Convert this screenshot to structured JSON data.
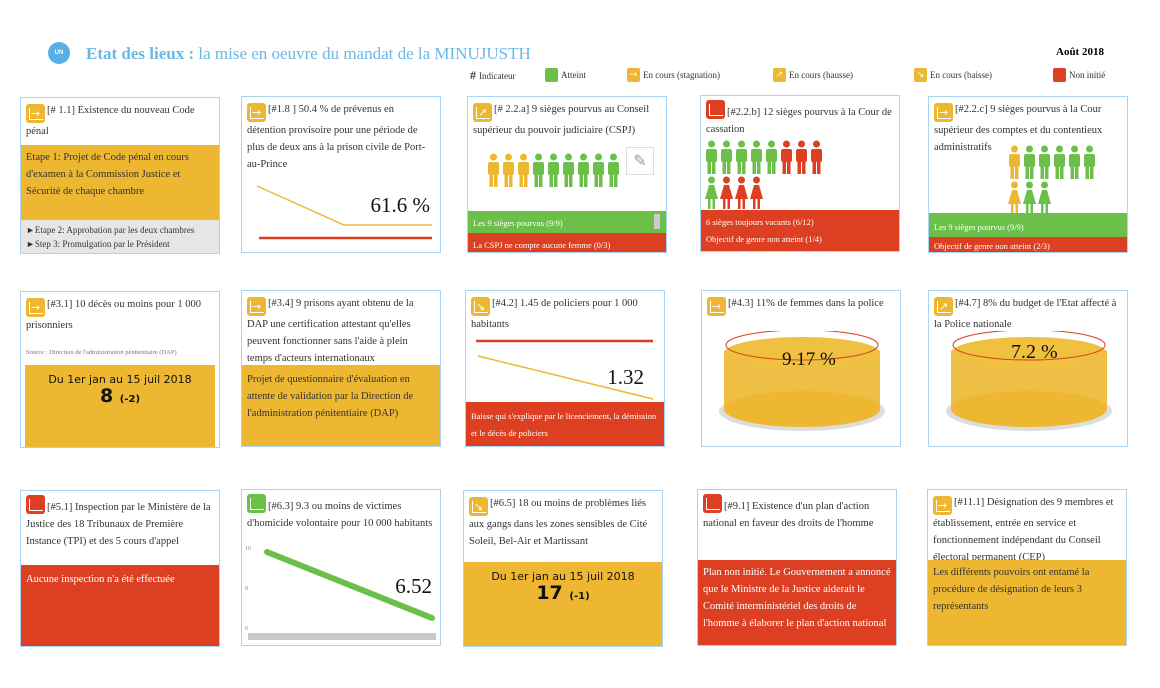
{
  "header": {
    "logo": "UN",
    "title_bold": "Etat des lieux :",
    "title_rest": " la mise en oeuvre du mandat de la MINUJUSTH",
    "date": "Août 2018"
  },
  "legend": [
    {
      "symbol": "#",
      "label": "Indicateur"
    },
    {
      "label": "Atteint",
      "color": "#6CC04A",
      "icon": "none"
    },
    {
      "label": "En cours (stagnation)",
      "color": "#EDB731",
      "icon": "arrow-right-icon"
    },
    {
      "label": "En cours (hausse)",
      "color": "#EDB731",
      "icon": "arrow-up-right-icon"
    },
    {
      "label": "En cours (baisse)",
      "color": "#EDB731",
      "icon": "arrow-down-right-icon"
    },
    {
      "label": "Non initié",
      "color": "#DC3F22",
      "icon": "none"
    }
  ],
  "colors": {
    "yellow": "#EDB731",
    "red": "#DC3F22",
    "green": "#6CC04A",
    "border": "#a9d4f5",
    "title": "#6ab8e8"
  },
  "cards": {
    "c11": {
      "status": "stagnation",
      "title": "[# 1.1] Existence du nouveau Code pénal",
      "step1": "Etape 1: Projet de Code pénal en cours d'examen à la Commission Justice et Sécurité de chaque chambre",
      "step2": "►Etape 2: Approbation par les deux chambres",
      "step3": "►Step 3: Promulgation par le Président"
    },
    "c18": {
      "status": "stagnation",
      "title": "[#1.8 ] 50.4 % de prévenus en détention provisoire pour une période de plus de deux ans à la prison civile de Port-au-Prince",
      "value": "61.6 %"
    },
    "c22a": {
      "status": "hausse",
      "title": "[# 2.2.a] 9 sièges pourvus au Conseil supérieur du pouvoir judiciaire (CSPJ)",
      "men": [
        "y",
        "y",
        "y",
        "g",
        "g",
        "g",
        "g",
        "g",
        "g"
      ],
      "line1": "Les 9 sièges pourvus (9/9)",
      "line2": "La CSPJ ne compte aucune femme (0/3)"
    },
    "c22b": {
      "status": "non-initie",
      "title": "[#2.2.b] 12 sièges pourvus à la Cour de cassation",
      "men": [
        "g",
        "g",
        "g",
        "g",
        "g",
        "r",
        "r",
        "r"
      ],
      "women": [
        "g",
        "r",
        "r",
        "r"
      ],
      "line1": "6 sièges toujours vacants (6/12)",
      "line2": "Objectif de genre non atteint (1/4)"
    },
    "c22c": {
      "status": "stagnation",
      "title": "[#2.2.c] 9 sièges pourvus à la Cour supérieur des comptes et du contentieux administratifs",
      "men": [
        "y",
        "g",
        "g",
        "g",
        "g",
        "g"
      ],
      "women": [
        "y",
        "g",
        "g"
      ],
      "line1": "Les 9 sièges pourvus  (9/9)",
      "line2": "Objectif de genre non atteint (2/3)"
    },
    "c31": {
      "status": "stagnation",
      "title": "[#3.1] 10 décès ou moins pour 1 000 prisonniers",
      "source": "Source : Direction de l'administration pénitentiaire (DAP)",
      "period": "Du 1er jan au 15 juil 2018",
      "value": "8",
      "delta": "(-2)"
    },
    "c34": {
      "status": "stagnation",
      "title": "[#3.4] 9 prisons ayant obtenu de la DAP une certification attestant qu'elles peuvent fonctionner sans l'aide à plein temps d'acteurs internationaux",
      "note": "Projet de questionnaire d'évaluation en attente de validation par la Direction de l'administration pénitentiaire (DAP)"
    },
    "c42": {
      "status": "baisse",
      "title": "[#4.2] 1.45 de policiers pour 1 000 habitants",
      "value": "1.32",
      "note": "Baisse qui s'explique par le licenciement, la démission et le décès de policiers"
    },
    "c43": {
      "status": "stagnation",
      "title": "[#4.3] 11% de femmes dans la police",
      "value": "9.17  %",
      "fill": 0.83
    },
    "c47": {
      "status": "hausse",
      "title": "[#4.7] 8% du budget de l'Etat affecté à la Police nationale",
      "value": "7.2 %",
      "fill": 0.9
    },
    "c51": {
      "status": "non-initie",
      "title": "[#5.1] Inspection par le Ministère de la Justice des 18 Tribunaux de Première Instance (TPI) et des 5 cours d'appel",
      "note": "Aucune inspection n'a été effectuée"
    },
    "c63": {
      "status": "atteint",
      "title": "[#6.3] 9.3 ou moins de victimes d'homicide volontaire pour 10 000 habitants",
      "value": "6.52",
      "ticks": [
        "10",
        "8",
        "6"
      ]
    },
    "c65": {
      "status": "baisse",
      "title": "[#6.5] 18 ou moins de problèmes liés aux gangs dans les zones sensibles de Cité Soleil, Bel-Air et Martissant",
      "period": "Du 1er jan au 15 juil 2018",
      "value": "17",
      "delta": "(-1)"
    },
    "c91": {
      "status": "non-initie",
      "title": "[#9.1] Existence d'un plan d'action national en faveur des droits de l'homme",
      "note": "Plan non initié. Le Gouvernement a annoncé que le Ministre de la Justice aiderait le Comité interministériel des droits de l'homme à élaborer le plan d'action national"
    },
    "c111": {
      "status": "stagnation",
      "title": "[#11.1] Désignation des 9 membres et établissement, entrée en service et fonctionnement indépendant du Conseil électoral permanent (CEP)",
      "note": "Les différents pouvoirs ont entamé la procédure de désignation de leurs 3 représentants"
    }
  }
}
